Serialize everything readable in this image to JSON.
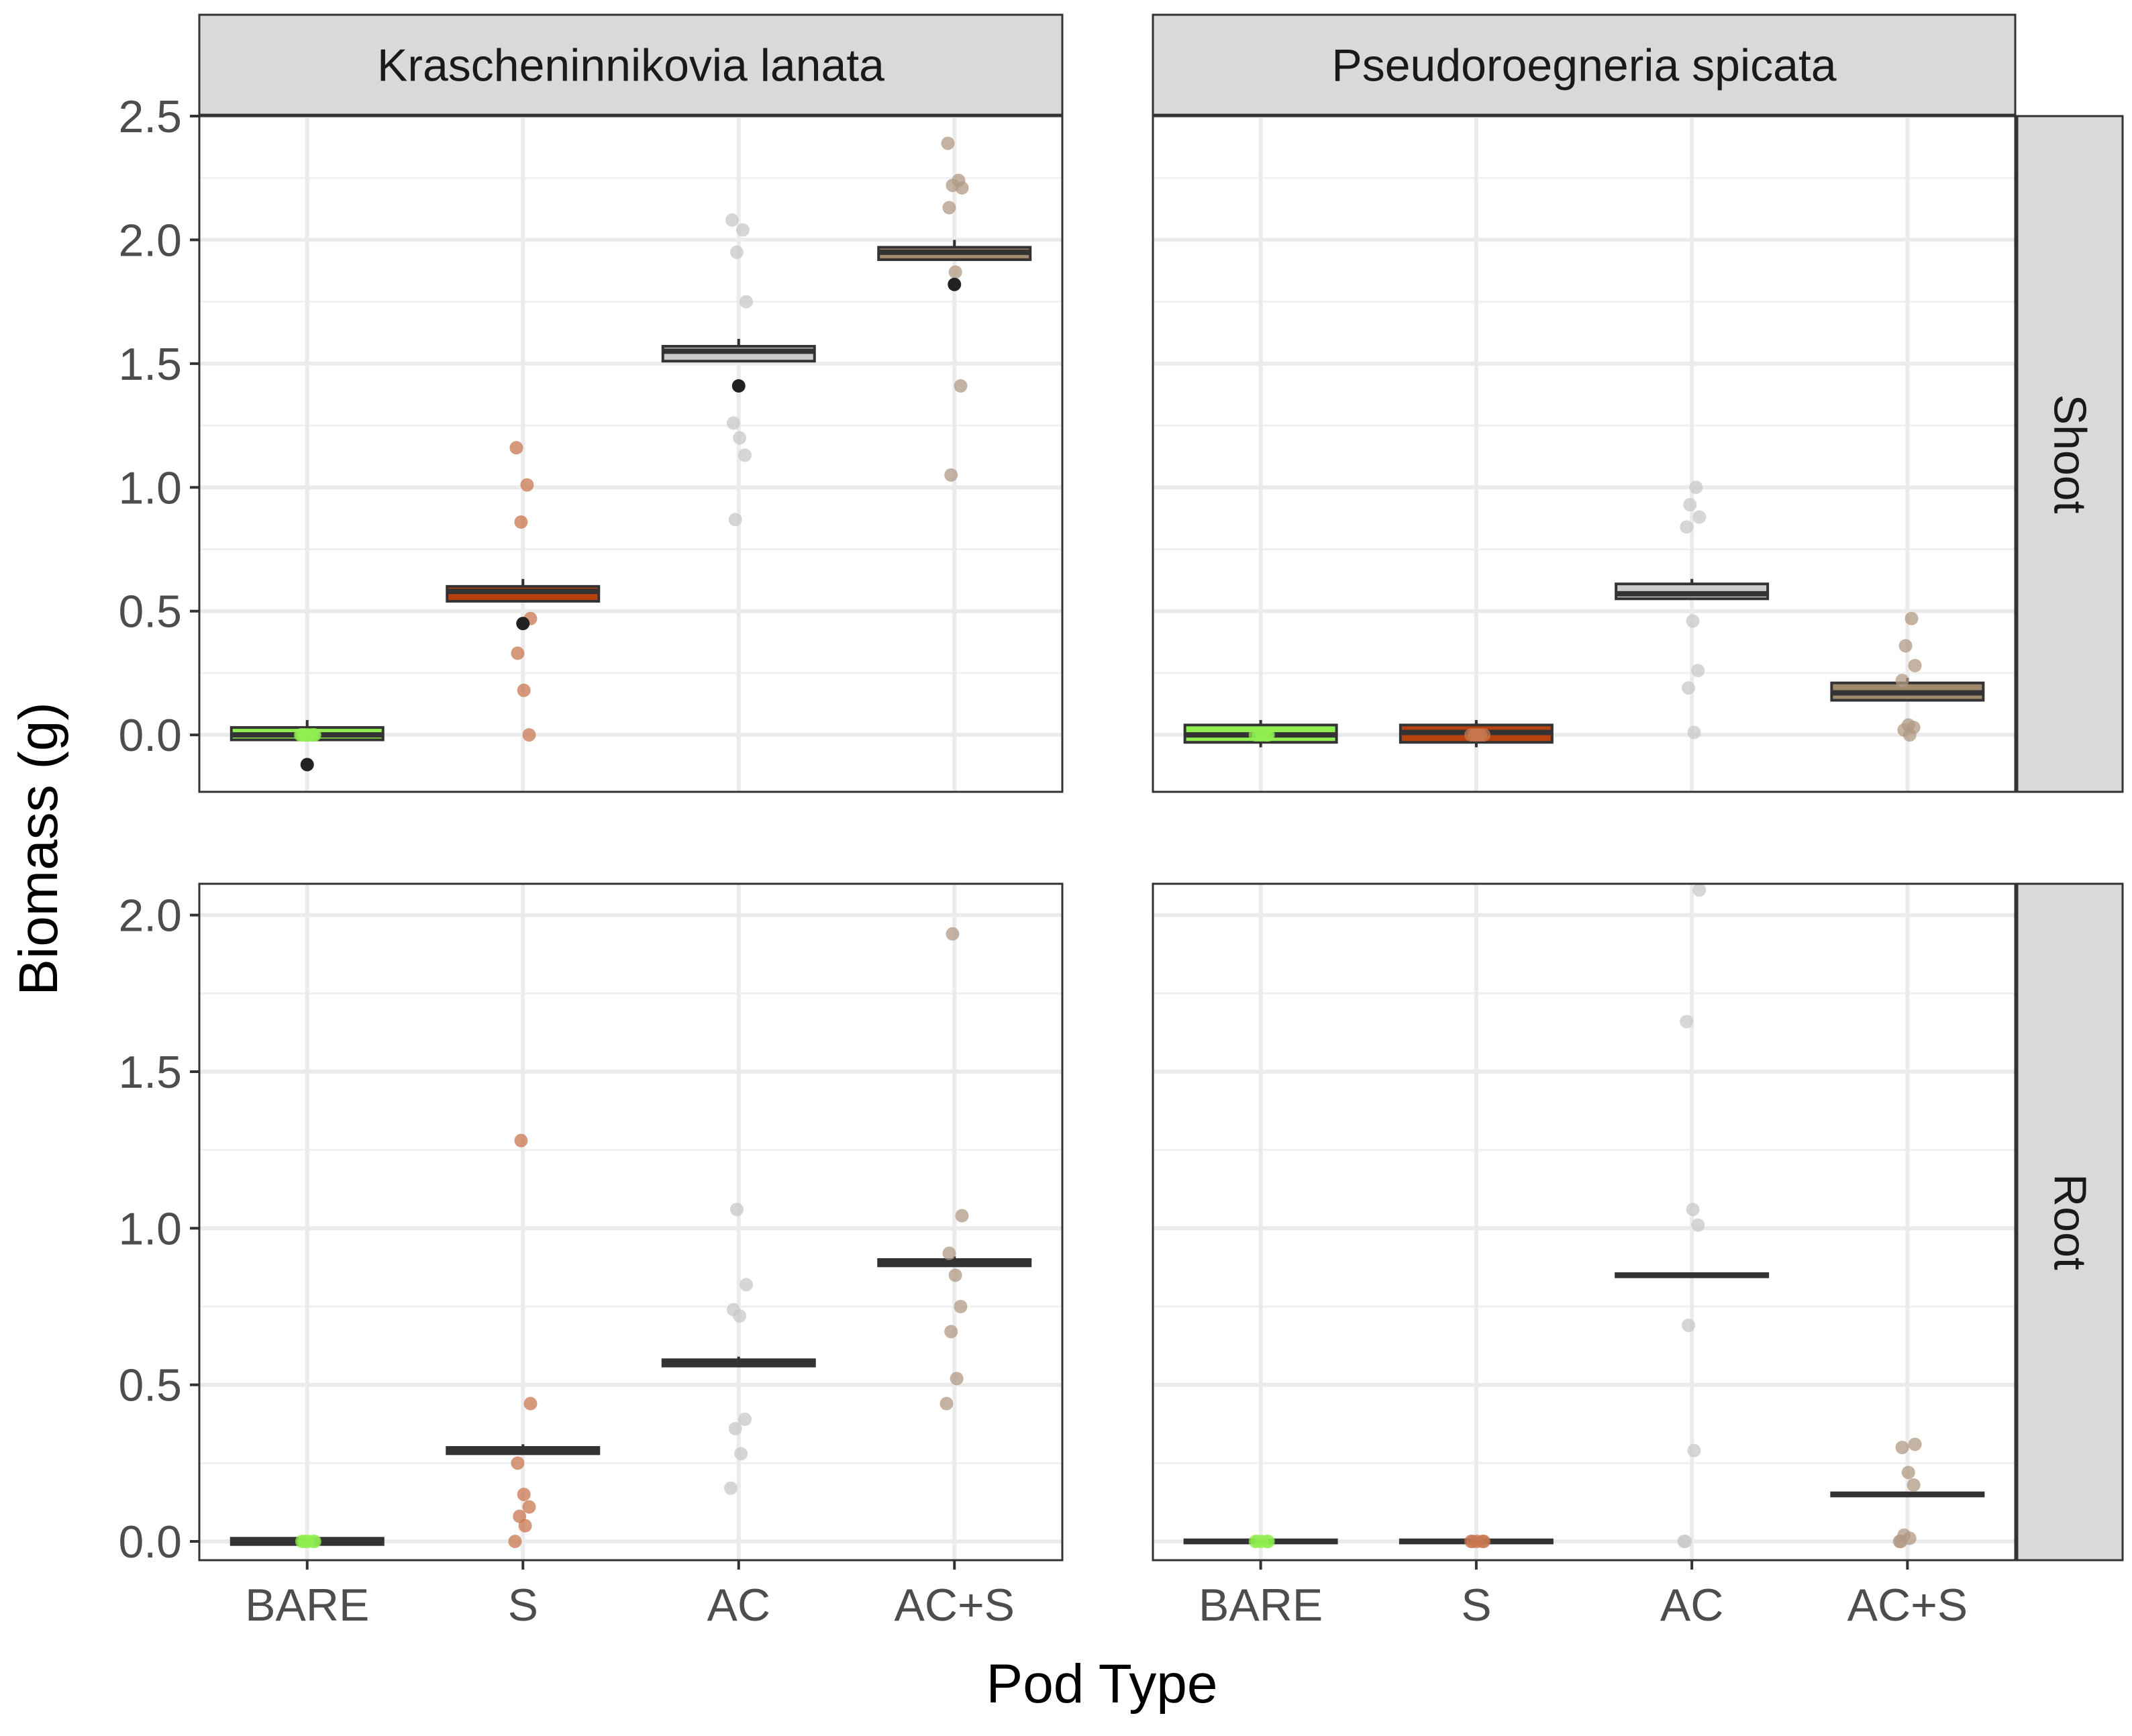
{
  "chart_data": {
    "type": "boxplot-jitter-facets",
    "xlabel": "Pod Type",
    "ylabel": "Biomass (g)",
    "categories": [
      "BARE",
      "S",
      "AC",
      "AC+S"
    ],
    "category_colors": {
      "BARE": "#90ee50",
      "S": "#b8420e",
      "AC": "#cccccc",
      "AC+S": "#a08a6e"
    },
    "point_colors": {
      "BARE": "#90ee50",
      "S": "#c8774f",
      "AC": "#c8c8c8",
      "AC+S": "#b09a84"
    },
    "outlier_color": "#222222",
    "columns": [
      "Krascheninnikovia lanata",
      "Pseudoroegneria spicata"
    ],
    "rows": [
      "Shoot",
      "Root"
    ],
    "row_axes": {
      "Shoot": {
        "ylim": [
          -0.23,
          2.5
        ],
        "ticks": [
          0.0,
          0.5,
          1.0,
          1.5,
          2.0,
          2.5
        ],
        "tick_labels": [
          "0.0",
          "0.5",
          "1.0",
          "1.5",
          "2.0",
          "2.5"
        ]
      },
      "Root": {
        "ylim": [
          -0.06,
          2.1
        ],
        "ticks": [
          0.0,
          0.5,
          1.0,
          1.5,
          2.0
        ],
        "tick_labels": [
          "0.0",
          "0.5",
          "1.0",
          "1.5",
          "2.0"
        ]
      }
    },
    "panels": [
      {
        "column": "Krascheninnikovia lanata",
        "row": "Shoot",
        "groups": [
          {
            "category": "BARE",
            "q1": -0.02,
            "median": 0.0,
            "q3": 0.03,
            "whisker_low": -0.02,
            "whisker_high": 0.06,
            "points": [
              0.0,
              0.0,
              0.0,
              0.0,
              0.0,
              0.0,
              0.0,
              0.0
            ],
            "outliers": [
              -0.12
            ]
          },
          {
            "category": "S",
            "q1": 0.54,
            "median": 0.58,
            "q3": 0.6,
            "whisker_low": 0.54,
            "whisker_high": 0.63,
            "points": [
              1.16,
              1.01,
              0.86,
              0.47,
              0.33,
              0.18,
              0.0
            ],
            "outliers": [
              0.45
            ]
          },
          {
            "category": "AC",
            "q1": 1.51,
            "median": 1.55,
            "q3": 1.57,
            "whisker_low": 1.51,
            "whisker_high": 1.6,
            "points": [
              2.08,
              2.04,
              1.95,
              1.75,
              1.26,
              1.2,
              1.13,
              0.87
            ],
            "outliers": [
              1.41
            ]
          },
          {
            "category": "AC+S",
            "q1": 1.92,
            "median": 1.95,
            "q3": 1.97,
            "whisker_low": 1.92,
            "whisker_high": 2.0,
            "points": [
              2.39,
              2.24,
              2.22,
              2.21,
              2.13,
              1.87,
              1.41,
              1.05
            ],
            "outliers": [
              1.82
            ]
          }
        ]
      },
      {
        "column": "Pseudoroegneria spicata",
        "row": "Shoot",
        "groups": [
          {
            "category": "BARE",
            "q1": -0.03,
            "median": 0.0,
            "q3": 0.04,
            "whisker_low": -0.05,
            "whisker_high": 0.06,
            "points": [
              0.0,
              0.0,
              0.0,
              0.0,
              0.0,
              0.0
            ],
            "outliers": []
          },
          {
            "category": "S",
            "q1": -0.03,
            "median": 0.01,
            "q3": 0.04,
            "whisker_low": -0.05,
            "whisker_high": 0.06,
            "points": [
              0.0,
              0.0,
              0.0,
              0.0,
              0.0
            ],
            "outliers": []
          },
          {
            "category": "AC",
            "q1": 0.55,
            "median": 0.57,
            "q3": 0.61,
            "whisker_low": 0.55,
            "whisker_high": 0.63,
            "points": [
              1.0,
              0.93,
              0.88,
              0.84,
              0.46,
              0.26,
              0.19,
              0.01
            ],
            "outliers": []
          },
          {
            "category": "AC+S",
            "q1": 0.14,
            "median": 0.17,
            "q3": 0.21,
            "whisker_low": 0.14,
            "whisker_high": 0.23,
            "points": [
              0.47,
              0.36,
              0.28,
              0.22,
              0.04,
              0.03,
              0.02,
              0.0
            ],
            "outliers": []
          }
        ]
      },
      {
        "column": "Krascheninnikovia lanata",
        "row": "Root",
        "groups": [
          {
            "category": "BARE",
            "q1": -0.01,
            "median": 0.0,
            "q3": 0.01,
            "whisker_low": -0.01,
            "whisker_high": 0.01,
            "points": [
              0.0,
              0.0,
              0.0,
              0.0,
              0.0,
              0.0
            ],
            "outliers": []
          },
          {
            "category": "S",
            "q1": 0.28,
            "median": 0.29,
            "q3": 0.3,
            "whisker_low": 0.28,
            "whisker_high": 0.31,
            "points": [
              1.28,
              0.44,
              0.25,
              0.15,
              0.11,
              0.08,
              0.05,
              0.0
            ],
            "outliers": []
          },
          {
            "category": "AC",
            "q1": 0.56,
            "median": 0.57,
            "q3": 0.58,
            "whisker_low": 0.56,
            "whisker_high": 0.59,
            "points": [
              1.06,
              0.82,
              0.74,
              0.72,
              0.39,
              0.36,
              0.28,
              0.17
            ],
            "outliers": []
          },
          {
            "category": "AC+S",
            "q1": 0.88,
            "median": 0.89,
            "q3": 0.9,
            "whisker_low": 0.88,
            "whisker_high": 0.91,
            "points": [
              1.94,
              1.04,
              0.92,
              0.85,
              0.75,
              0.67,
              0.52,
              0.44
            ],
            "outliers": []
          }
        ]
      },
      {
        "column": "Pseudoroegneria spicata",
        "row": "Root",
        "groups": [
          {
            "category": "BARE",
            "q1": -0.005,
            "median": 0.0,
            "q3": 0.005,
            "whisker_low": -0.005,
            "whisker_high": 0.005,
            "points": [
              0.0,
              0.0,
              0.0,
              0.0,
              0.0
            ],
            "outliers": []
          },
          {
            "category": "S",
            "q1": -0.005,
            "median": 0.0,
            "q3": 0.005,
            "whisker_low": -0.005,
            "whisker_high": 0.005,
            "points": [
              0.0,
              0.0,
              0.0,
              0.0,
              0.0
            ],
            "outliers": []
          },
          {
            "category": "AC",
            "q1": 0.845,
            "median": 0.85,
            "q3": 0.855,
            "whisker_low": 0.845,
            "whisker_high": 0.855,
            "points": [
              2.08,
              1.66,
              1.06,
              1.01,
              0.69,
              0.29,
              0.0,
              0.0
            ],
            "outliers": []
          },
          {
            "category": "AC+S",
            "q1": 0.145,
            "median": 0.15,
            "q3": 0.155,
            "whisker_low": 0.145,
            "whisker_high": 0.155,
            "points": [
              0.31,
              0.3,
              0.22,
              0.18,
              0.02,
              0.01,
              0.0,
              0.0
            ],
            "outliers": []
          }
        ]
      }
    ]
  }
}
